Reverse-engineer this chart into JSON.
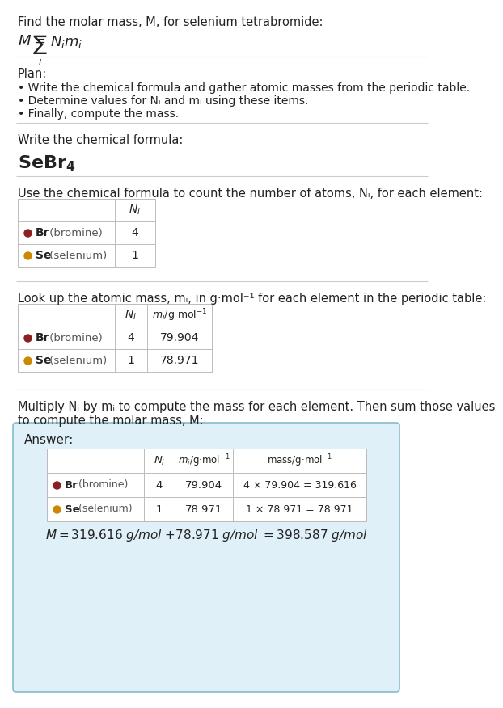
{
  "bg_color": "#ffffff",
  "text_color": "#222222",
  "gray_text_color": "#555555",
  "table_border_color": "#bbbbbb",
  "answer_box_color": "#dff0f8",
  "answer_box_border": "#88bbcc",
  "br_color": "#8B2020",
  "se_color": "#CC8800",
  "title_text": "Find the molar mass, M, for selenium tetrabromide:",
  "plan_header": "Plan:",
  "plan_line1": "• Write the chemical formula and gather atomic masses from the periodic table.",
  "plan_line2": "• Determine values for Nᵢ and mᵢ using these items.",
  "plan_line3": "• Finally, compute the mass.",
  "step1_header": "Write the chemical formula:",
  "step2_header": "Use the chemical formula to count the number of atoms, Nᵢ, for each element:",
  "step3_header": "Look up the atomic mass, mᵢ, in g·mol⁻¹ for each element in the periodic table:",
  "step4_line1": "Multiply Nᵢ by mᵢ to compute the mass for each element. Then sum those values",
  "step4_line2": "to compute the molar mass, M:",
  "answer_label": "Answer:",
  "br_element": "Br",
  "br_name": " (bromine)",
  "se_element": "Se",
  "se_name": " (selenium)",
  "br_Ni": "4",
  "se_Ni": "1",
  "br_mi": "79.904",
  "se_mi": "78.971",
  "br_mass": "4 × 79.904 = 319.616",
  "se_mass": "1 × 78.971 = 78.971",
  "final_answer": "M = 319.616 g/mol + 78.971 g/mol = 398.587 g/mol"
}
